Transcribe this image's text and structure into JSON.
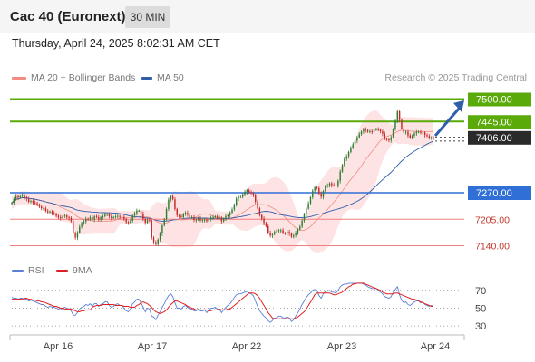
{
  "header": {
    "title": "Cac 40 (Euronext)",
    "timeframe": "30 MIN"
  },
  "datetime": "Thursday, April 24, 2025 8:02:31 AM CET",
  "legend": {
    "items": [
      {
        "label": "MA 20 + Bollinger Bands",
        "color": "#f28b82"
      },
      {
        "label": "MA 50",
        "color": "#2e5ea8"
      }
    ],
    "credit": "Research © 2025 Trading Central"
  },
  "rsi_legend": {
    "items": [
      {
        "label": "RSI",
        "color": "#5b7fd6"
      },
      {
        "label": "9MA",
        "color": "#e02020"
      }
    ]
  },
  "colors": {
    "resistance": "#5aaa0a",
    "support": "#2f6fd6",
    "pivot": "#2a2a2a",
    "minor": "#f08080",
    "bullish_candle": "#2e7d32",
    "bearish_candle": "#c62828",
    "band_fill": "#fde3e3",
    "arrow": "#2f5fa8"
  },
  "chart_data": [
    {
      "type": "candlestick",
      "ylim": [
        7110,
        7530
      ],
      "x_labels": [
        "Apr 16",
        "Apr 17",
        "Apr 22",
        "Apr 23",
        "Apr 24"
      ],
      "levels": [
        {
          "value": 7500.0,
          "label": "7500.00",
          "kind": "resistance"
        },
        {
          "value": 7445.0,
          "label": "7445.00",
          "kind": "resistance"
        },
        {
          "value": 7406.0,
          "label": "7406.00",
          "kind": "pivot"
        },
        {
          "value": 7270.0,
          "label": "7270.00",
          "kind": "support"
        },
        {
          "value": 7205.0,
          "label": "7205.00",
          "kind": "minor"
        },
        {
          "value": 7140.0,
          "label": "7140.00",
          "kind": "minor"
        }
      ],
      "close": [
        7245,
        7255,
        7262,
        7258,
        7262,
        7264,
        7258,
        7255,
        7248,
        7250,
        7246,
        7245,
        7240,
        7236,
        7232,
        7232,
        7225,
        7222,
        7224,
        7220,
        7218,
        7213,
        7210,
        7208,
        7212,
        7214,
        7210,
        7208,
        7200,
        7172,
        7160,
        7172,
        7186,
        7196,
        7200,
        7206,
        7205,
        7210,
        7204,
        7212,
        7210,
        7204,
        7210,
        7212,
        7216,
        7218,
        7212,
        7208,
        7210,
        7212,
        7213,
        7211,
        7210,
        7205,
        7198,
        7197,
        7201,
        7214,
        7220,
        7226,
        7226,
        7219,
        7206,
        7197,
        7203,
        7202,
        7160,
        7149,
        7143,
        7155,
        7170,
        7190,
        7205,
        7230,
        7253,
        7262,
        7254,
        7230,
        7215,
        7213,
        7210,
        7218,
        7221,
        7217,
        7210,
        7210,
        7203,
        7204,
        7207,
        7202,
        7203,
        7204,
        7200,
        7205,
        7209,
        7210,
        7212,
        7208,
        7209,
        7200,
        7205,
        7212,
        7215,
        7221,
        7229,
        7241,
        7256,
        7260,
        7260,
        7266,
        7272,
        7276,
        7271,
        7270,
        7264,
        7248,
        7232,
        7215,
        7207,
        7196,
        7188,
        7172,
        7165,
        7168,
        7174,
        7176,
        7178,
        7178,
        7171,
        7170,
        7174,
        7170,
        7162,
        7165,
        7172,
        7180,
        7187,
        7202,
        7218,
        7231,
        7244,
        7259,
        7275,
        7283,
        7281,
        7268,
        7260,
        7274,
        7286,
        7288,
        7293,
        7289,
        7288,
        7287,
        7299,
        7322,
        7338,
        7353,
        7360,
        7370,
        7381,
        7389,
        7398,
        7406,
        7414,
        7420,
        7426,
        7424,
        7420,
        7421,
        7419,
        7425,
        7426,
        7425,
        7421,
        7415,
        7402,
        7401,
        7399,
        7406,
        7426,
        7446,
        7470,
        7449,
        7428,
        7418,
        7420,
        7411,
        7405,
        7410,
        7416,
        7419,
        7420,
        7417,
        7418,
        7412,
        7409,
        7405,
        7406,
        7405
      ]
    },
    {
      "type": "line",
      "title": "RSI",
      "ylim": [
        22,
        82
      ],
      "y_ticks": [
        70,
        50,
        30
      ],
      "series": [
        {
          "name": "RSI",
          "values": [
            62,
            61,
            61,
            60,
            61,
            61,
            60,
            60,
            58,
            59,
            58,
            57,
            56,
            55,
            54,
            54,
            52,
            51,
            52,
            51,
            51,
            50,
            49,
            48,
            50,
            51,
            50,
            49,
            47,
            42,
            42,
            45,
            49,
            51,
            52,
            54,
            53,
            55,
            52,
            55,
            55,
            52,
            54,
            55,
            57,
            57,
            53,
            51,
            52,
            54,
            55,
            53,
            53,
            50,
            47,
            46,
            49,
            55,
            57,
            60,
            60,
            56,
            51,
            46,
            50,
            49,
            41,
            40,
            37,
            42,
            46,
            51,
            55,
            60,
            64,
            66,
            63,
            56,
            50,
            50,
            49,
            52,
            53,
            51,
            49,
            49,
            47,
            47,
            49,
            47,
            47,
            48,
            45,
            48,
            50,
            50,
            51,
            49,
            49,
            45,
            48,
            51,
            53,
            55,
            58,
            62,
            65,
            66,
            66,
            67,
            68,
            69,
            67,
            66,
            64,
            58,
            52,
            47,
            44,
            41,
            39,
            36,
            34,
            36,
            39,
            39,
            41,
            41,
            39,
            39,
            40,
            39,
            35,
            37,
            41,
            45,
            49,
            54,
            58,
            62,
            65,
            67,
            70,
            71,
            70,
            64,
            61,
            66,
            69,
            69,
            70,
            68,
            68,
            67,
            70,
            74,
            76,
            77,
            77,
            78,
            78,
            78,
            78,
            78,
            78,
            78,
            77,
            76,
            74,
            73,
            72,
            72,
            72,
            70,
            68,
            66,
            63,
            62,
            61,
            63,
            68,
            71,
            74,
            65,
            59,
            56,
            57,
            54,
            53,
            55,
            57,
            58,
            58,
            56,
            57,
            54,
            53,
            52,
            53,
            52
          ]
        },
        {
          "name": "9MA",
          "values": [
            60,
            60,
            60,
            60,
            60,
            60,
            61,
            61,
            60,
            60,
            59,
            59,
            58,
            58,
            57,
            57,
            56,
            55,
            54,
            53,
            52,
            52,
            51,
            50,
            50,
            49,
            49,
            49,
            49,
            48,
            47,
            46,
            46,
            47,
            47,
            48,
            48,
            48,
            51,
            52,
            53,
            53,
            53,
            54,
            54,
            54,
            54,
            54,
            54,
            53,
            53,
            53,
            53,
            52,
            52,
            52,
            51,
            51,
            51,
            53,
            54,
            56,
            57,
            56,
            55,
            53,
            51,
            48,
            46,
            45,
            44,
            45,
            46,
            48,
            51,
            54,
            56,
            58,
            58,
            57,
            56,
            55,
            54,
            52,
            51,
            50,
            49,
            48,
            48,
            48,
            48,
            48,
            48,
            47,
            47,
            48,
            48,
            48,
            49,
            48,
            48,
            48,
            49,
            49,
            51,
            53,
            55,
            57,
            59,
            61,
            63,
            65,
            67,
            67,
            67,
            66,
            64,
            61,
            57,
            53,
            49,
            45,
            42,
            39,
            38,
            38,
            38,
            38,
            38,
            38,
            38,
            38,
            38,
            38,
            39,
            40,
            42,
            44,
            46,
            49,
            53,
            57,
            61,
            65,
            67,
            67,
            67,
            67,
            67,
            67,
            67,
            66,
            65,
            65,
            66,
            67,
            68,
            70,
            72,
            74,
            75,
            77,
            77,
            78,
            78,
            78,
            78,
            77,
            76,
            75,
            74,
            73,
            72,
            71,
            70,
            68,
            67,
            66,
            66,
            66,
            66,
            67,
            67,
            66,
            65,
            64,
            63,
            62,
            61,
            60,
            60,
            59,
            58,
            57,
            56,
            55,
            54,
            53,
            52,
            52
          ]
        }
      ]
    }
  ]
}
